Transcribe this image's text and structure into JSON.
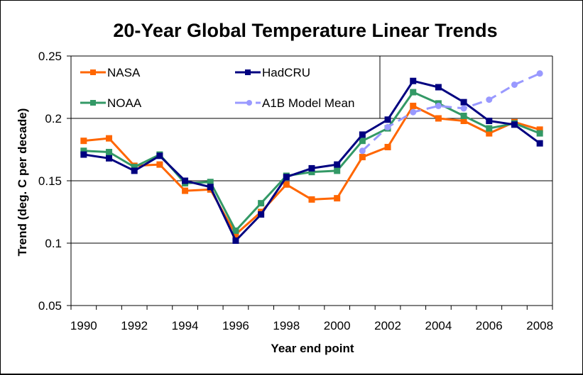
{
  "chart_data": {
    "type": "line",
    "title": "20-Year Global Temperature Linear Trends",
    "xlabel": "Year end point",
    "ylabel": "Trend (deg. C per decade)",
    "x": [
      1990,
      1991,
      1992,
      1993,
      1994,
      1995,
      1996,
      1997,
      1998,
      1999,
      2000,
      2001,
      2002,
      2003,
      2004,
      2005,
      2006,
      2007,
      2008
    ],
    "x_tick_labels": [
      "1990",
      "1992",
      "1994",
      "1996",
      "1998",
      "2000",
      "2002",
      "2004",
      "2006",
      "2008"
    ],
    "ylim": [
      0.05,
      0.25
    ],
    "y_ticks": [
      0.05,
      0.1,
      0.15,
      0.2,
      0.25
    ],
    "y_tick_labels": [
      "0.05",
      "0.1",
      "0.15",
      "0.2",
      "0.25"
    ],
    "grid": "horizontal major gridlines",
    "legend_position": "top-left (inside plot)",
    "series": [
      {
        "name": "NASA",
        "color": "#FF6600",
        "marker": "square",
        "line_style": "solid",
        "values": [
          0.182,
          0.184,
          0.162,
          0.163,
          0.142,
          0.143,
          0.107,
          0.125,
          0.147,
          0.135,
          0.136,
          0.169,
          0.177,
          0.21,
          0.2,
          0.198,
          0.188,
          0.197,
          0.191
        ]
      },
      {
        "name": "HadCRU",
        "color": "#000080",
        "marker": "square",
        "line_style": "solid",
        "values": [
          0.171,
          0.168,
          0.158,
          0.17,
          0.15,
          0.145,
          0.102,
          0.123,
          0.153,
          0.16,
          0.163,
          0.187,
          0.199,
          0.23,
          0.225,
          0.213,
          0.198,
          0.195,
          0.18
        ]
      },
      {
        "name": "NOAA",
        "color": "#339966",
        "marker": "square",
        "line_style": "solid",
        "values": [
          0.174,
          0.173,
          0.161,
          0.171,
          0.148,
          0.149,
          0.11,
          0.132,
          0.154,
          0.157,
          0.158,
          0.182,
          0.192,
          0.221,
          0.212,
          0.202,
          0.192,
          0.196,
          0.188
        ]
      },
      {
        "name": "A1B Model Mean",
        "color": "#9999FF",
        "marker": "circle",
        "line_style": "dashed",
        "values": [
          null,
          null,
          null,
          null,
          null,
          null,
          null,
          null,
          null,
          null,
          null,
          0.174,
          0.193,
          0.205,
          0.21,
          0.208,
          0.215,
          0.227,
          0.236
        ]
      }
    ]
  }
}
